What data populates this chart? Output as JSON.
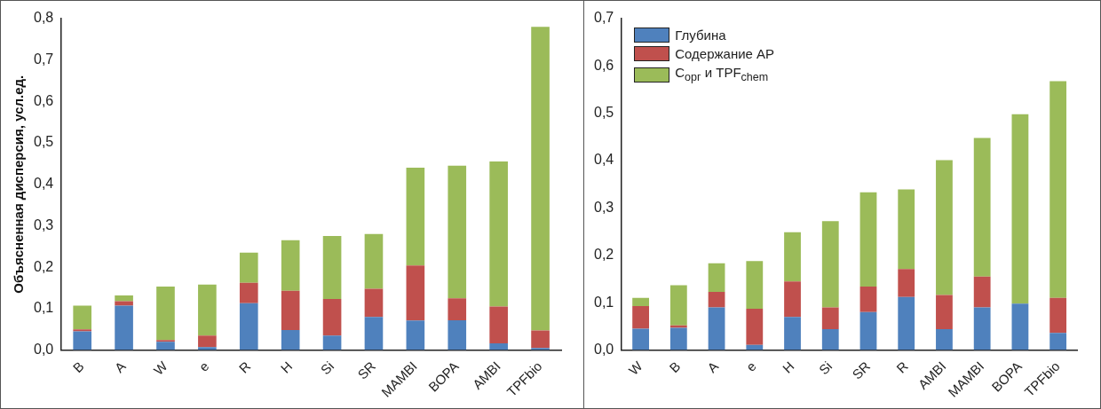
{
  "chart_data": [
    {
      "type": "bar",
      "stacked": true,
      "ylabel": "Объясненная дисперсия, усл.ед.",
      "categories": [
        "B",
        "A",
        "W",
        "e",
        "R",
        "H",
        "Si",
        "SR",
        "MAMBI",
        "BOPA",
        "AMBI",
        "TPFbio"
      ],
      "series": [
        {
          "color": "#4f81bd",
          "values": [
            0.045,
            0.107,
            0.02,
            0.007,
            0.113,
            0.048,
            0.035,
            0.08,
            0.071,
            0.072,
            0.016,
            0.005
          ]
        },
        {
          "color": "#c0504d",
          "values": [
            0.005,
            0.011,
            0.004,
            0.028,
            0.049,
            0.095,
            0.088,
            0.068,
            0.133,
            0.053,
            0.089,
            0.042
          ]
        },
        {
          "color": "#9bbb59",
          "values": [
            0.057,
            0.014,
            0.129,
            0.123,
            0.073,
            0.122,
            0.152,
            0.132,
            0.236,
            0.32,
            0.35,
            0.733
          ]
        }
      ],
      "ylim": [
        0,
        0.8
      ],
      "yticks": [
        {
          "value": 0,
          "label": "0,0"
        },
        {
          "value": 0.1,
          "label": "0,1"
        },
        {
          "value": 0.2,
          "label": "0,2"
        },
        {
          "value": 0.3,
          "label": "0,3"
        },
        {
          "value": 0.4,
          "label": "0,4"
        },
        {
          "value": 0.5,
          "label": "0,5"
        },
        {
          "value": 0.6,
          "label": "0,6"
        },
        {
          "value": 0.7,
          "label": "0,7"
        },
        {
          "value": 0.8,
          "label": "0,8"
        }
      ],
      "grid": false,
      "legend": false
    },
    {
      "type": "bar",
      "stacked": true,
      "categories": [
        "W",
        "B",
        "A",
        "e",
        "H",
        "Si",
        "SR",
        "R",
        "AMBI",
        "MAMBI",
        "BOPA",
        "TPFbio"
      ],
      "series": [
        {
          "name": "Глубина",
          "color": "#4f81bd",
          "values": [
            0.045,
            0.047,
            0.09,
            0.011,
            0.07,
            0.044,
            0.08,
            0.112,
            0.044,
            0.09,
            0.098,
            0.036
          ]
        },
        {
          "name": "Содержание АР",
          "color": "#c0504d",
          "values": [
            0.048,
            0.005,
            0.033,
            0.076,
            0.075,
            0.046,
            0.054,
            0.059,
            0.072,
            0.065,
            0,
            0.074
          ]
        },
        {
          "name": "C$_{орг}$ и TPF$_{chem}$",
          "color": "#9bbb59",
          "values": [
            0.017,
            0.085,
            0.06,
            0.101,
            0.104,
            0.182,
            0.199,
            0.168,
            0.285,
            0.293,
            0.4,
            0.458
          ]
        }
      ],
      "ylim": [
        0,
        0.7
      ],
      "yticks": [
        {
          "value": 0,
          "label": "0,0"
        },
        {
          "value": 0.1,
          "label": "0,1"
        },
        {
          "value": 0.2,
          "label": "0,2"
        },
        {
          "value": 0.3,
          "label": "0,3"
        },
        {
          "value": 0.4,
          "label": "0,4"
        },
        {
          "value": 0.5,
          "label": "0,5"
        },
        {
          "value": 0.6,
          "label": "0,6"
        },
        {
          "value": 0.7,
          "label": "0,7"
        }
      ],
      "grid": false,
      "legend": "top left"
    }
  ]
}
